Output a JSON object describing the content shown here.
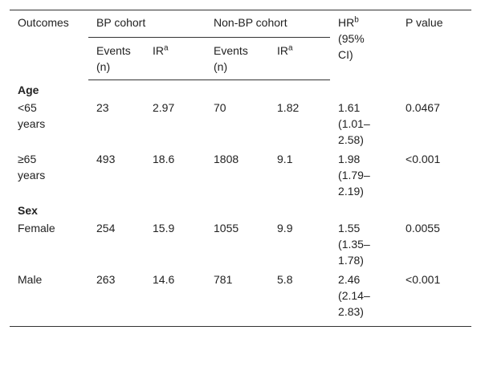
{
  "table": {
    "header": {
      "outcomes": "Outcomes",
      "bp_cohort": "BP cohort",
      "non_bp_cohort": "Non-BP cohort",
      "hr": {
        "text": "HR",
        "sup": "b",
        "ci": "(95% CI)"
      },
      "p_value": "P value"
    },
    "subheader": [
      {
        "text": "Events (n)"
      },
      {
        "text": "IR",
        "sup": "a"
      },
      {
        "text": "Events (n)"
      },
      {
        "text": "IR",
        "sup": "a"
      }
    ],
    "sections": [
      {
        "label": "Age",
        "rows": [
          [
            "<65 years",
            "23",
            "2.97",
            "70",
            "1.82",
            "1.61 (1.01–2.58)",
            "0.0467"
          ],
          [
            "≥65 years",
            "493",
            "18.6",
            "1808",
            "9.1",
            "1.98 (1.79–2.19)",
            "<0.001"
          ]
        ]
      },
      {
        "label": "Sex",
        "rows": [
          [
            "Female",
            "254",
            "15.9",
            "1055",
            "9.9",
            "1.55 (1.35–1.78)",
            "0.0055"
          ],
          [
            "Male",
            "263",
            "14.6",
            "781",
            "5.8",
            "2.46 (2.14–2.83)",
            "<0.001"
          ]
        ]
      }
    ]
  }
}
